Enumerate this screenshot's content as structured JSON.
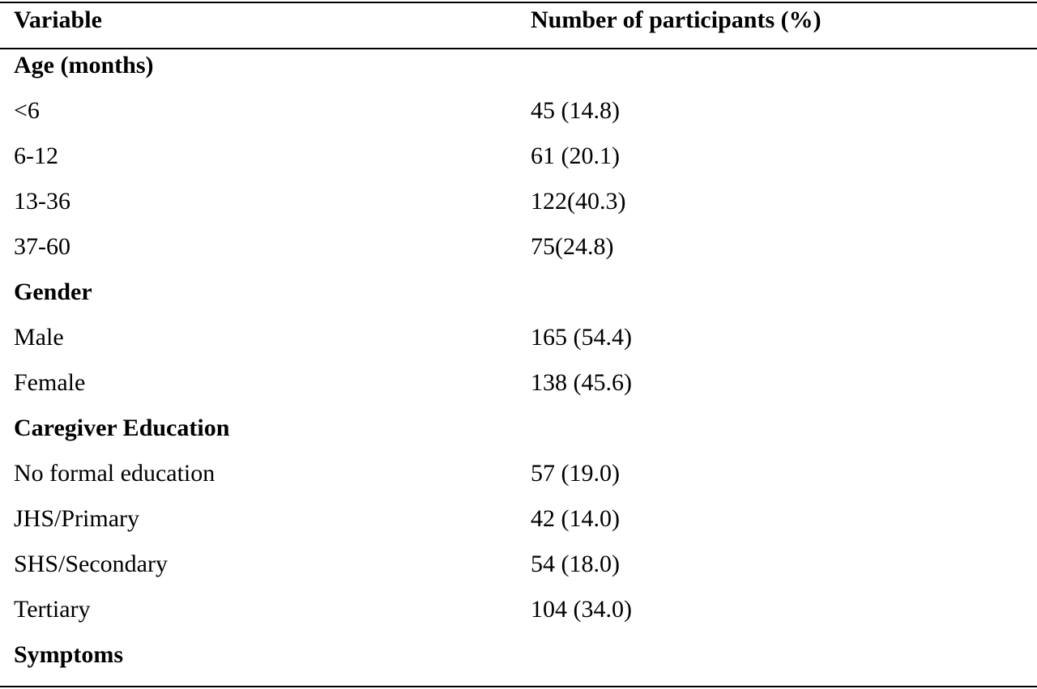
{
  "table": {
    "header": [
      "Variable",
      "Number of participants (%)"
    ],
    "rows": [
      [
        "Age (months)",
        null
      ],
      [
        "<6",
        "45 (14.8)"
      ],
      [
        "6-12",
        "61 (20.1)"
      ],
      [
        "13-36",
        "122(40.3)"
      ],
      [
        "37-60",
        "75(24.8)"
      ],
      [
        "Gender",
        null
      ],
      [
        "Male",
        "165 (54.4)"
      ],
      [
        "Female",
        "138 (45.6)"
      ],
      [
        "Caregiver Education",
        null
      ],
      [
        "No formal education",
        "57 (19.0)"
      ],
      [
        "JHS/Primary",
        "42 (14.0)"
      ],
      [
        "SHS/Secondary",
        "54 (18.0)"
      ],
      [
        "Tertiary",
        "104 (34.0)"
      ],
      [
        "Symptoms",
        null
      ]
    ]
  }
}
